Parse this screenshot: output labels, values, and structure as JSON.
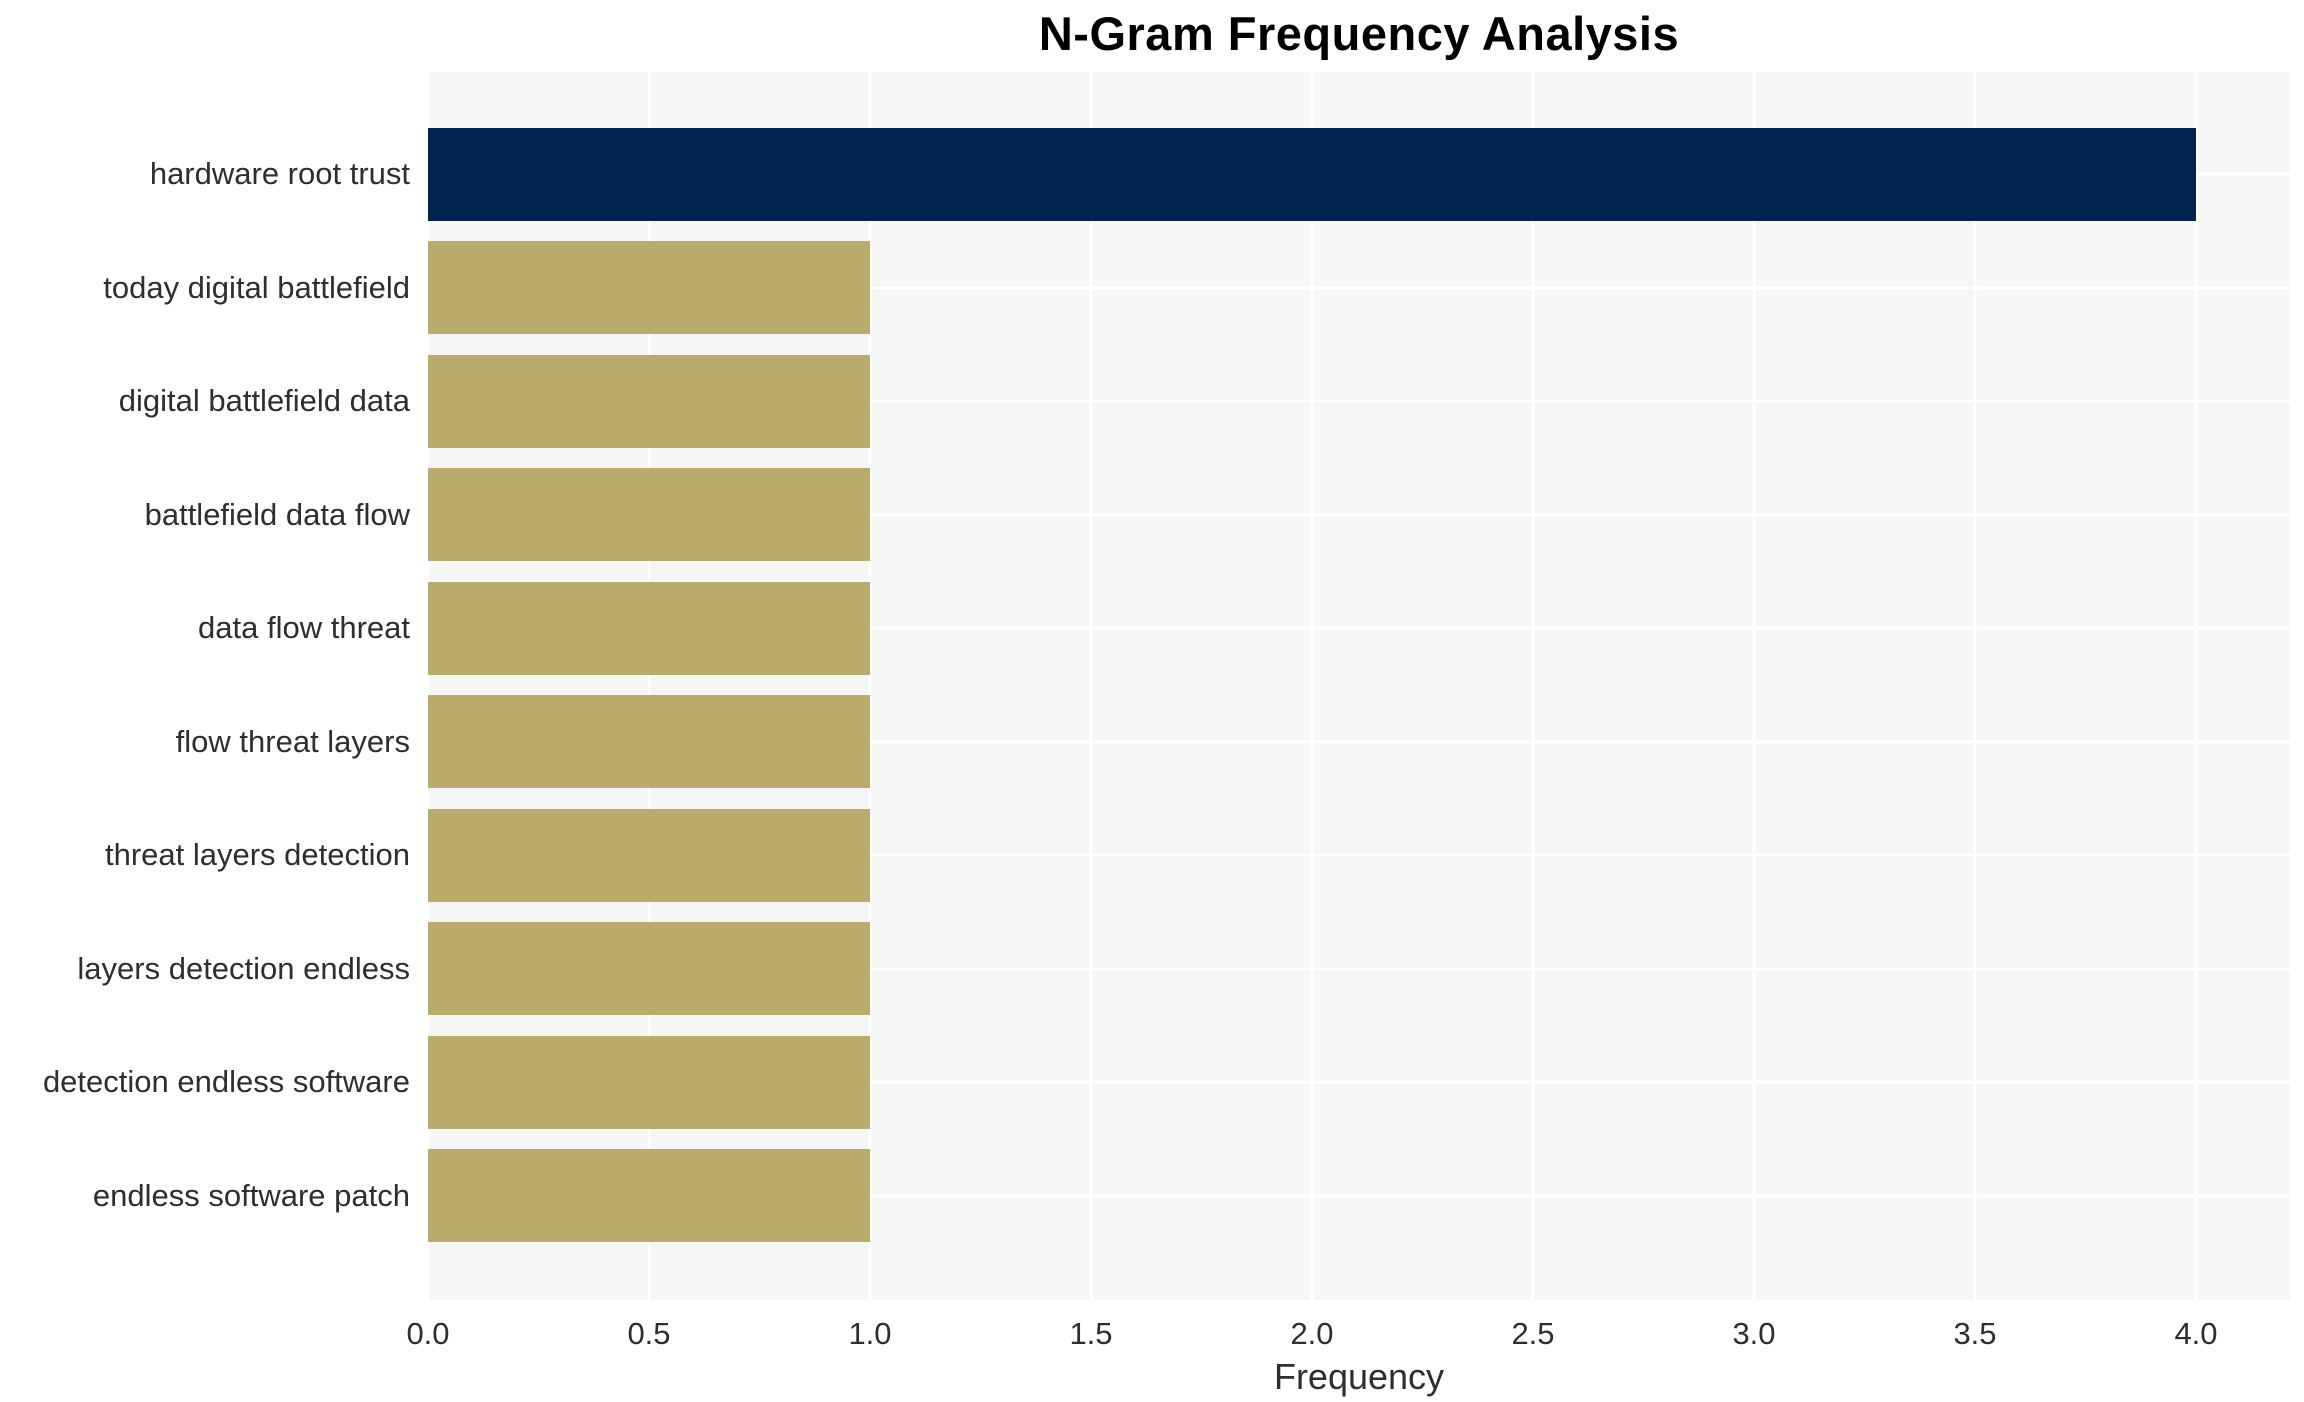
{
  "chart_data": {
    "type": "bar",
    "orientation": "horizontal",
    "title": "N-Gram Frequency Analysis",
    "xlabel": "Frequency",
    "ylabel": "",
    "categories": [
      "hardware root trust",
      "today digital battlefield",
      "digital battlefield data",
      "battlefield data flow",
      "data flow threat",
      "flow threat layers",
      "threat layers detection",
      "layers detection endless",
      "detection endless software",
      "endless software patch"
    ],
    "values": [
      4,
      1,
      1,
      1,
      1,
      1,
      1,
      1,
      1,
      1
    ],
    "bar_colors": [
      "#02234d",
      "#b8ab6b",
      "#b8ab6b",
      "#b8ab6b",
      "#b8ab6b",
      "#b8ab6b",
      "#b8ab6b",
      "#b8ab6b",
      "#b8ab6b",
      "#b8ab6b"
    ],
    "xticks": [
      0.0,
      0.5,
      1.0,
      1.5,
      2.0,
      2.5,
      3.0,
      3.5,
      4.0
    ],
    "xtick_labels": [
      "0.0",
      "0.5",
      "1.0",
      "1.5",
      "2.0",
      "2.5",
      "3.0",
      "3.5",
      "4.0"
    ],
    "xlim": [
      0,
      4.21
    ],
    "grid": true,
    "legend": false,
    "colors": {
      "highlight_bar": "#02234d",
      "default_bar": "#b8ab6b",
      "plot_background": "#f6f6f6",
      "gridline": "#ffffff",
      "tick_text": "#2e2e2e",
      "title_text": "#000000",
      "figure_background": "#ffffff"
    }
  }
}
